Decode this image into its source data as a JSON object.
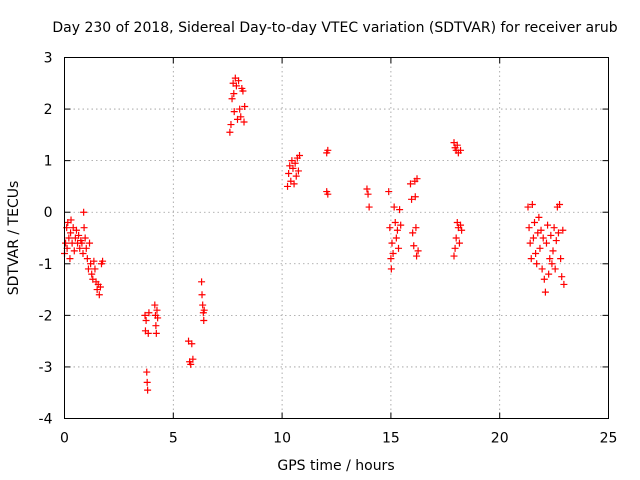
{
  "chart_data": {
    "type": "scatter",
    "title": "Day 230 of 2018, Sidereal Day-to-day VTEC variation (SDTVAR) for receiver arub",
    "xlabel": "GPS time / hours",
    "ylabel": "SDTVAR / TECUs",
    "xlim": [
      0,
      25
    ],
    "ylim": [
      -4,
      3
    ],
    "xticks": [
      0,
      5,
      10,
      15,
      20,
      25
    ],
    "yticks": [
      -4,
      -3,
      -2,
      -1,
      0,
      1,
      2,
      3
    ],
    "xtick_labels": [
      "0",
      "5",
      "10",
      "15",
      "20",
      "25"
    ],
    "ytick_labels": [
      "-4",
      "-3",
      "-2",
      "-1",
      "0",
      "1",
      "2",
      "3"
    ],
    "grid": true,
    "marker": "plus",
    "color": "#ff0000",
    "series": [
      {
        "name": "SDTVAR",
        "points": [
          [
            0.0,
            -0.8
          ],
          [
            0.05,
            -0.6
          ],
          [
            0.1,
            -0.3
          ],
          [
            0.12,
            -0.7
          ],
          [
            0.15,
            -0.2
          ],
          [
            0.2,
            -0.5
          ],
          [
            0.25,
            -0.9
          ],
          [
            0.28,
            -0.4
          ],
          [
            0.3,
            -0.15
          ],
          [
            0.35,
            -0.6
          ],
          [
            0.4,
            -0.3
          ],
          [
            0.45,
            -0.75
          ],
          [
            0.5,
            -0.5
          ],
          [
            0.55,
            -0.35
          ],
          [
            0.6,
            -0.6
          ],
          [
            0.65,
            -0.45
          ],
          [
            0.7,
            -0.7
          ],
          [
            0.75,
            -0.55
          ],
          [
            0.8,
            -0.6
          ],
          [
            0.85,
            -0.8
          ],
          [
            0.88,
            0.0
          ],
          [
            0.9,
            -0.3
          ],
          [
            0.95,
            -0.5
          ],
          [
            1.0,
            -0.7
          ],
          [
            1.05,
            -0.9
          ],
          [
            1.1,
            -1.1
          ],
          [
            1.15,
            -0.6
          ],
          [
            1.2,
            -1.0
          ],
          [
            1.25,
            -1.2
          ],
          [
            1.3,
            -1.3
          ],
          [
            1.35,
            -0.95
          ],
          [
            1.4,
            -1.1
          ],
          [
            1.45,
            -1.35
          ],
          [
            1.5,
            -1.5
          ],
          [
            1.55,
            -1.4
          ],
          [
            1.6,
            -1.6
          ],
          [
            1.65,
            -1.45
          ],
          [
            1.7,
            -1.0
          ],
          [
            1.75,
            -0.95
          ],
          [
            3.7,
            -2.0
          ],
          [
            3.72,
            -2.3
          ],
          [
            3.75,
            -2.1
          ],
          [
            3.78,
            -3.1
          ],
          [
            3.8,
            -3.3
          ],
          [
            3.82,
            -3.45
          ],
          [
            3.85,
            -2.35
          ],
          [
            3.88,
            -1.95
          ],
          [
            4.15,
            -1.8
          ],
          [
            4.18,
            -2.0
          ],
          [
            4.2,
            -2.2
          ],
          [
            4.22,
            -2.35
          ],
          [
            4.25,
            -1.9
          ],
          [
            4.28,
            -2.05
          ],
          [
            5.7,
            -2.5
          ],
          [
            5.75,
            -2.9
          ],
          [
            5.8,
            -2.95
          ],
          [
            5.85,
            -2.55
          ],
          [
            5.9,
            -2.85
          ],
          [
            6.3,
            -1.35
          ],
          [
            6.32,
            -1.6
          ],
          [
            6.35,
            -1.8
          ],
          [
            6.38,
            -1.95
          ],
          [
            6.4,
            -2.1
          ],
          [
            6.42,
            -1.9
          ],
          [
            7.6,
            1.55
          ],
          [
            7.65,
            1.7
          ],
          [
            7.7,
            2.2
          ],
          [
            7.75,
            2.5
          ],
          [
            7.78,
            2.3
          ],
          [
            7.8,
            1.95
          ],
          [
            7.85,
            2.6
          ],
          [
            7.9,
            2.45
          ],
          [
            7.95,
            1.8
          ],
          [
            8.0,
            2.55
          ],
          [
            8.05,
            2.0
          ],
          [
            8.1,
            1.85
          ],
          [
            8.15,
            2.4
          ],
          [
            8.2,
            2.35
          ],
          [
            8.25,
            1.75
          ],
          [
            8.28,
            2.05
          ],
          [
            10.25,
            0.5
          ],
          [
            10.3,
            0.75
          ],
          [
            10.35,
            0.9
          ],
          [
            10.4,
            0.6
          ],
          [
            10.45,
            1.0
          ],
          [
            10.5,
            0.85
          ],
          [
            10.55,
            0.55
          ],
          [
            10.6,
            0.95
          ],
          [
            10.65,
            0.7
          ],
          [
            10.7,
            1.05
          ],
          [
            10.75,
            0.8
          ],
          [
            10.8,
            1.1
          ],
          [
            12.05,
            1.15
          ],
          [
            12.1,
            1.2
          ],
          [
            12.05,
            0.4
          ],
          [
            12.1,
            0.35
          ],
          [
            13.9,
            0.45
          ],
          [
            13.95,
            0.35
          ],
          [
            14.0,
            0.1
          ],
          [
            14.9,
            0.4
          ],
          [
            14.95,
            -0.3
          ],
          [
            15.0,
            -0.9
          ],
          [
            15.02,
            -1.1
          ],
          [
            15.05,
            -0.6
          ],
          [
            15.1,
            -0.8
          ],
          [
            15.15,
            0.1
          ],
          [
            15.2,
            -0.2
          ],
          [
            15.25,
            -0.5
          ],
          [
            15.3,
            -0.35
          ],
          [
            15.35,
            -0.7
          ],
          [
            15.4,
            0.05
          ],
          [
            15.45,
            -0.25
          ],
          [
            15.9,
            0.55
          ],
          [
            15.95,
            0.25
          ],
          [
            16.0,
            -0.4
          ],
          [
            16.05,
            -0.65
          ],
          [
            16.1,
            0.6
          ],
          [
            16.12,
            0.3
          ],
          [
            16.15,
            -0.3
          ],
          [
            16.18,
            -0.85
          ],
          [
            16.2,
            0.65
          ],
          [
            16.25,
            -0.75
          ],
          [
            17.9,
            1.35
          ],
          [
            17.95,
            1.25
          ],
          [
            18.0,
            1.2
          ],
          [
            18.05,
            1.3
          ],
          [
            18.1,
            1.15
          ],
          [
            18.2,
            1.2
          ],
          [
            17.9,
            -0.85
          ],
          [
            17.95,
            -0.7
          ],
          [
            18.0,
            -0.5
          ],
          [
            18.05,
            -0.2
          ],
          [
            18.1,
            -0.3
          ],
          [
            18.15,
            -0.6
          ],
          [
            18.2,
            -0.25
          ],
          [
            18.25,
            -0.35
          ],
          [
            21.3,
            0.1
          ],
          [
            21.35,
            -0.3
          ],
          [
            21.4,
            -0.6
          ],
          [
            21.45,
            -0.9
          ],
          [
            21.5,
            0.15
          ],
          [
            21.55,
            -0.5
          ],
          [
            21.6,
            -0.2
          ],
          [
            21.65,
            -0.8
          ],
          [
            21.7,
            -1.0
          ],
          [
            21.75,
            -0.4
          ],
          [
            21.8,
            -0.1
          ],
          [
            21.85,
            -0.7
          ],
          [
            21.9,
            -0.35
          ],
          [
            21.95,
            -1.1
          ],
          [
            22.0,
            -0.5
          ],
          [
            22.05,
            -1.3
          ],
          [
            22.1,
            -1.55
          ],
          [
            22.15,
            -0.6
          ],
          [
            22.2,
            -0.25
          ],
          [
            22.25,
            -1.2
          ],
          [
            22.3,
            -0.9
          ],
          [
            22.35,
            -0.45
          ],
          [
            22.4,
            -1.0
          ],
          [
            22.45,
            -0.75
          ],
          [
            22.5,
            -0.3
          ],
          [
            22.55,
            -1.1
          ],
          [
            22.6,
            -0.55
          ],
          [
            22.65,
            0.1
          ],
          [
            22.7,
            -0.4
          ],
          [
            22.75,
            0.15
          ],
          [
            22.8,
            -0.9
          ],
          [
            22.85,
            -1.25
          ],
          [
            22.9,
            -0.35
          ],
          [
            22.95,
            -1.4
          ]
        ]
      }
    ]
  }
}
